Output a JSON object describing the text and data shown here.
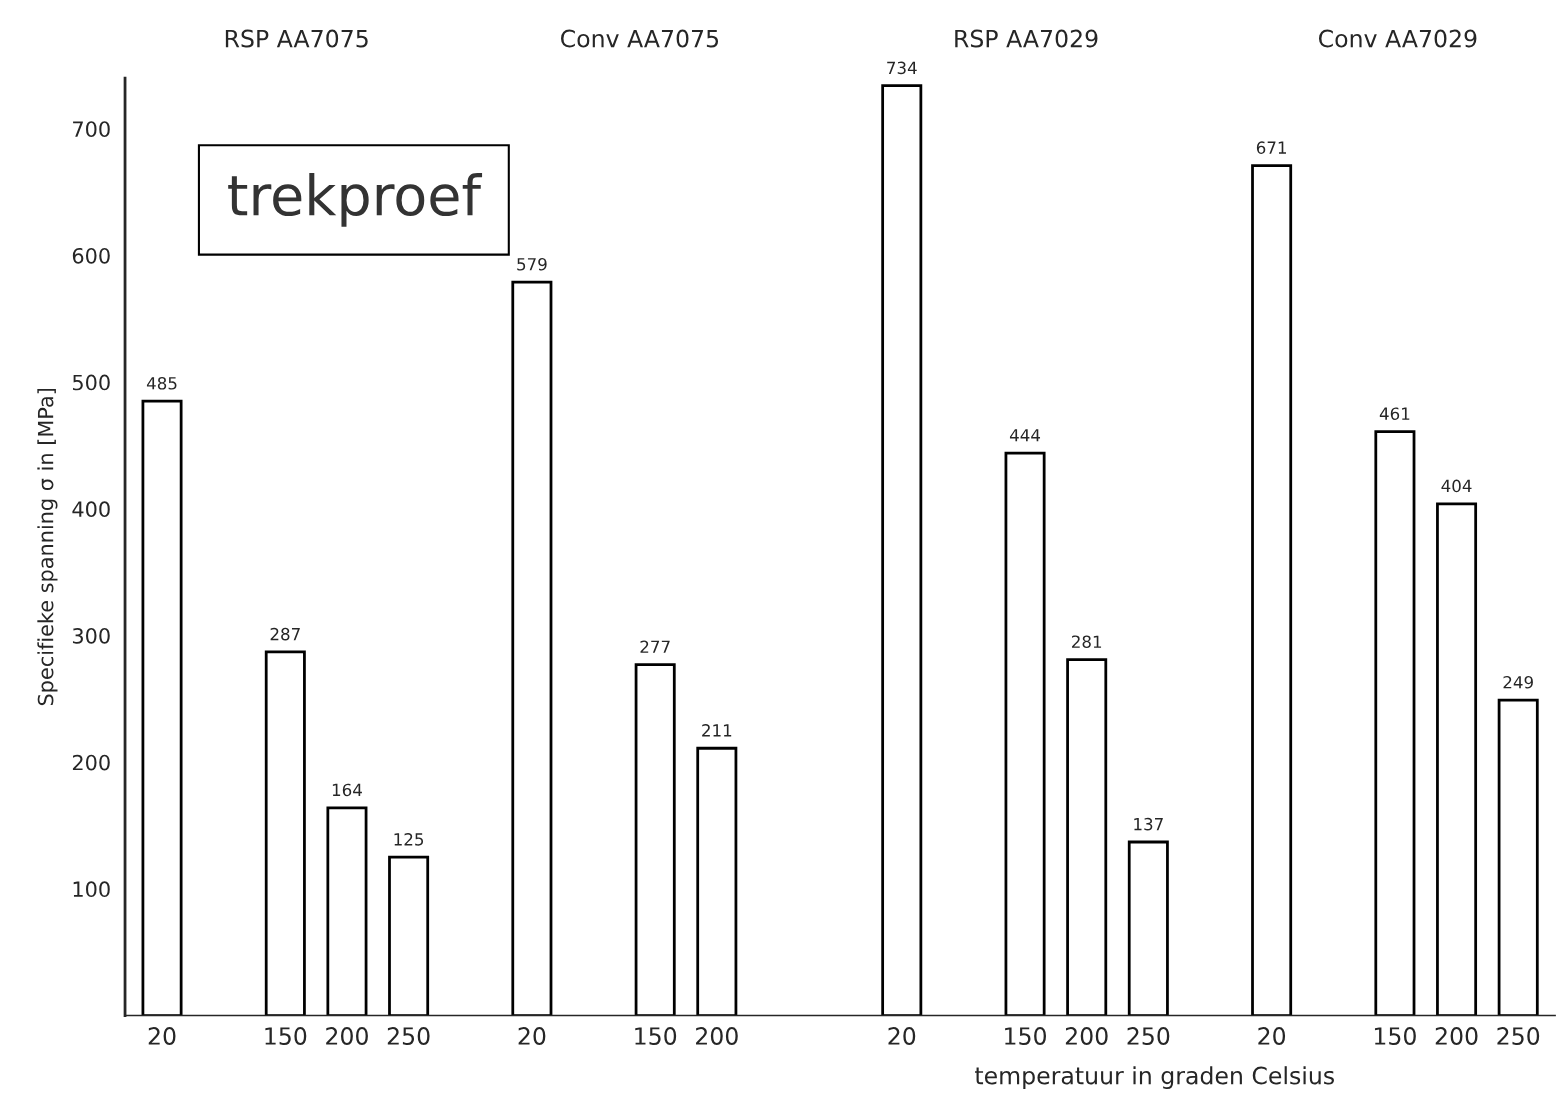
{
  "chart_data": {
    "type": "bar",
    "xlabel": "temperatuur in graden Celsius",
    "ylabel": "Specifieke spanning σ in [MPa]",
    "categories": [
      "20",
      null,
      "150",
      "200",
      "250",
      null,
      "20",
      null,
      "150",
      "200",
      null,
      null,
      "20",
      null,
      "150",
      "200",
      "250",
      null,
      "20",
      null,
      "150",
      "200",
      "250"
    ],
    "values": [
      485,
      null,
      287,
      164,
      125,
      null,
      579,
      null,
      277,
      211,
      null,
      null,
      734,
      null,
      444,
      281,
      137,
      null,
      671,
      null,
      461,
      404,
      249
    ],
    "color": "#ffffff",
    "data_labels": true,
    "ylim": [
      0,
      740
    ],
    "yticks": [
      100,
      200,
      300,
      400,
      500,
      600,
      700
    ],
    "grid": false,
    "annotations": [
      "RSP AA7075",
      "Conv AA7075",
      "RSP AA7029",
      "Conv AA7029",
      "trekproef"
    ]
  }
}
